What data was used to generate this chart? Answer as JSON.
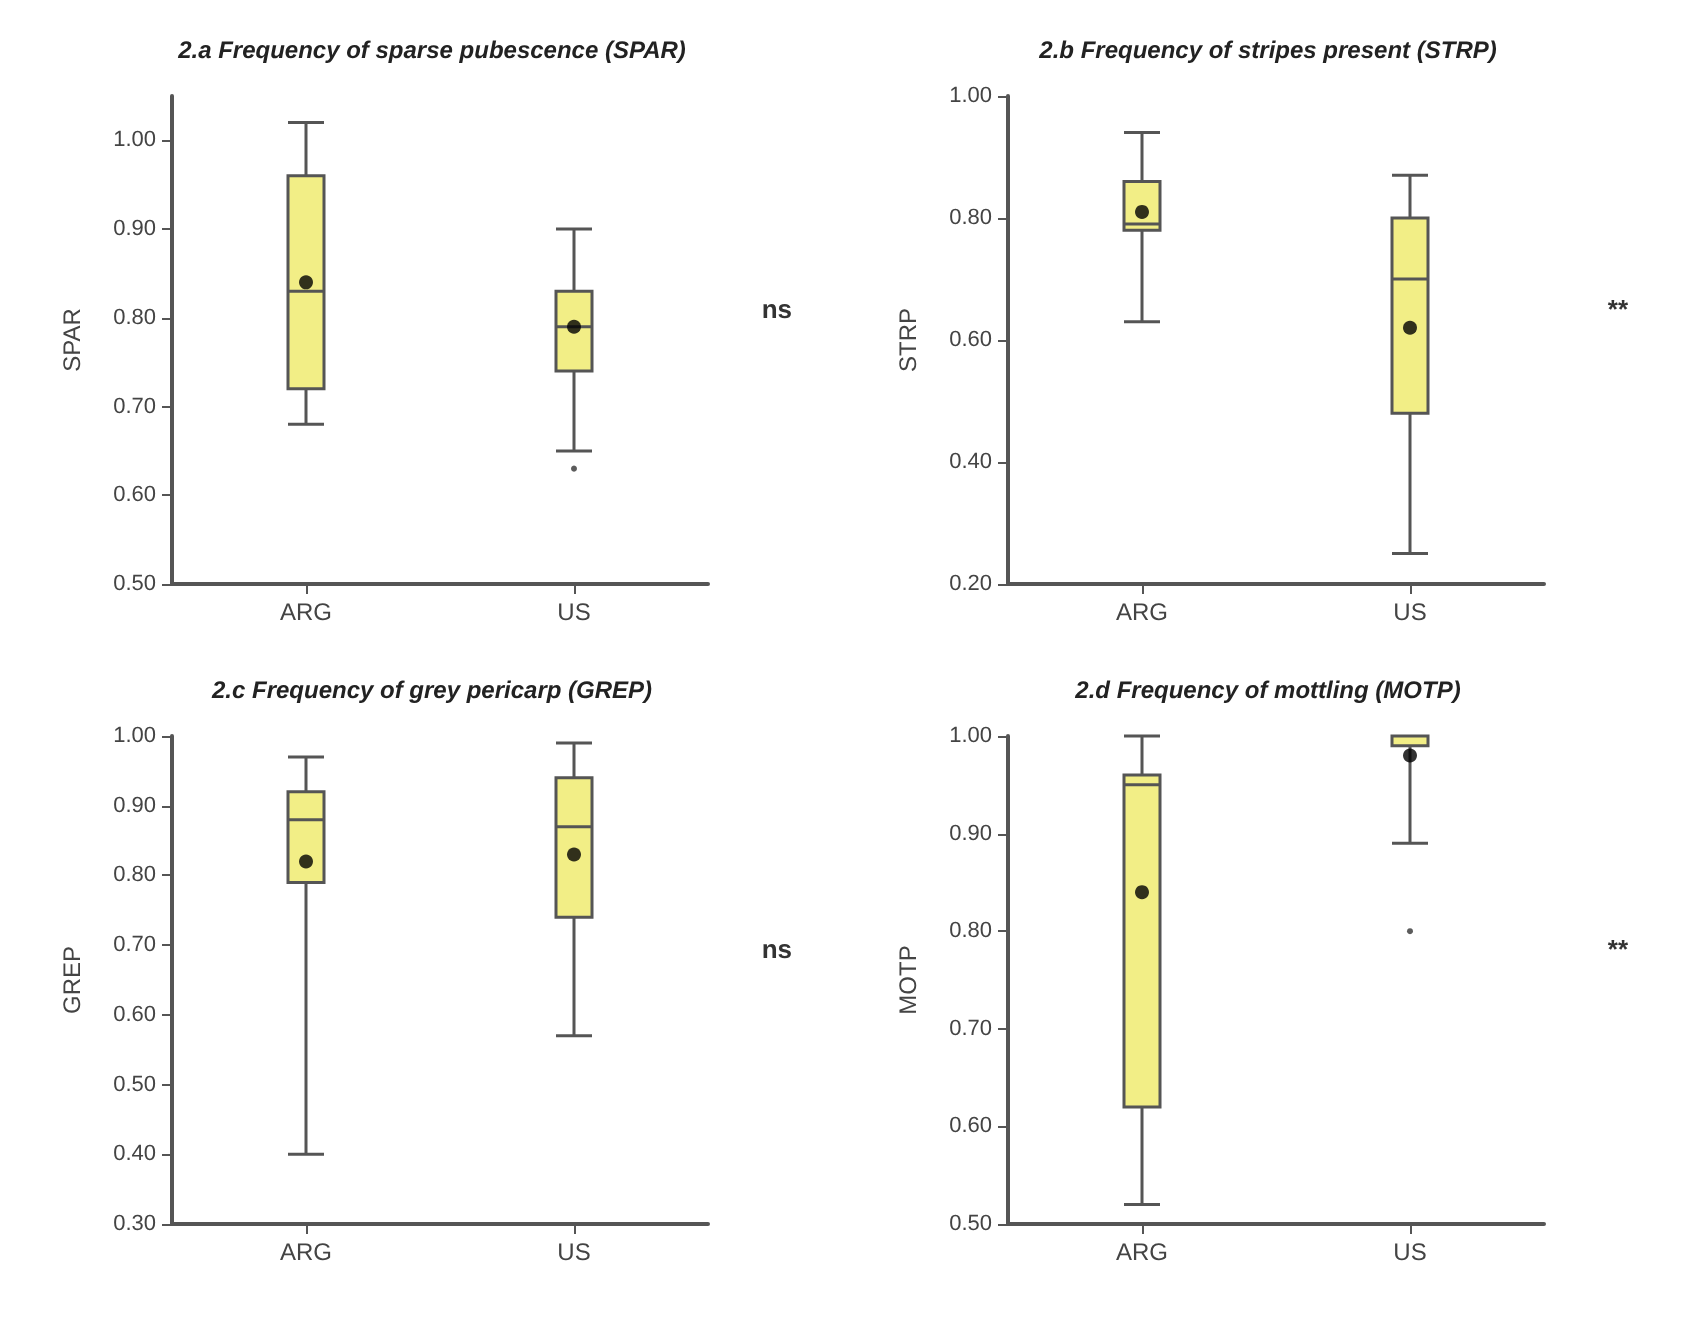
{
  "chart_data": [
    {
      "type": "box",
      "title": "2.a Frequency of sparse pubescence (SPAR)",
      "ylabel": "SPAR",
      "categories": [
        "ARG",
        "US"
      ],
      "color": "#f2ee86",
      "boxes": [
        {
          "low": 0.68,
          "q1": 0.72,
          "median": 0.83,
          "q3": 0.96,
          "high": 1.02,
          "mean": 0.84
        },
        {
          "low": 0.65,
          "q1": 0.74,
          "median": 0.79,
          "q3": 0.83,
          "high": 0.9,
          "mean": 0.79,
          "outliers": [
            0.63
          ]
        }
      ],
      "ylim": [
        0.5,
        1.05
      ],
      "yticks": [
        {
          "value": 0.5,
          "label": "0.50"
        },
        {
          "value": 0.6,
          "label": "0.60"
        },
        {
          "value": 0.7,
          "label": "0.70"
        },
        {
          "value": 0.8,
          "label": "0.80"
        },
        {
          "value": 0.9,
          "label": "0.90"
        },
        {
          "value": 1.0,
          "label": "1.00"
        }
      ],
      "annotations": [
        "ns"
      ]
    },
    {
      "type": "box",
      "title": "2.b Frequency of stripes present (STRP)",
      "ylabel": "STRP",
      "categories": [
        "ARG",
        "US"
      ],
      "color": "#f2ee86",
      "boxes": [
        {
          "low": 0.63,
          "q1": 0.78,
          "median": 0.79,
          "q3": 0.86,
          "high": 0.94,
          "mean": 0.81
        },
        {
          "low": 0.25,
          "q1": 0.48,
          "median": 0.7,
          "q3": 0.8,
          "high": 0.87,
          "mean": 0.62
        }
      ],
      "ylim": [
        0.2,
        1.0
      ],
      "yticks": [
        {
          "value": 0.2,
          "label": "0.20"
        },
        {
          "value": 0.4,
          "label": "0.40"
        },
        {
          "value": 0.6,
          "label": "0.60"
        },
        {
          "value": 0.8,
          "label": "0.80"
        },
        {
          "value": 1.0,
          "label": "1.00"
        }
      ],
      "annotations": [
        "**"
      ]
    },
    {
      "type": "box",
      "title": "2.c Frequency of grey pericarp (GREP)",
      "ylabel": "GREP",
      "categories": [
        "ARG",
        "US"
      ],
      "color": "#f2ee86",
      "boxes": [
        {
          "low": 0.4,
          "q1": 0.79,
          "median": 0.88,
          "q3": 0.92,
          "high": 0.97,
          "mean": 0.82
        },
        {
          "low": 0.57,
          "q1": 0.74,
          "median": 0.87,
          "q3": 0.94,
          "high": 0.99,
          "mean": 0.83
        }
      ],
      "ylim": [
        0.3,
        1.0
      ],
      "yticks": [
        {
          "value": 0.3,
          "label": "0.30"
        },
        {
          "value": 0.4,
          "label": "0.40"
        },
        {
          "value": 0.5,
          "label": "0.50"
        },
        {
          "value": 0.6,
          "label": "0.60"
        },
        {
          "value": 0.7,
          "label": "0.70"
        },
        {
          "value": 0.8,
          "label": "0.80"
        },
        {
          "value": 0.9,
          "label": "0.90"
        },
        {
          "value": 1.0,
          "label": "1.00"
        }
      ],
      "annotations": [
        "ns"
      ]
    },
    {
      "type": "box",
      "title": "2.d Frequency of mottling (MOTP)",
      "ylabel": "MOTP",
      "categories": [
        "ARG",
        "US"
      ],
      "color": "#f2ee86",
      "boxes": [
        {
          "low": 0.52,
          "q1": 0.62,
          "median": 0.95,
          "q3": 0.96,
          "high": 1.0,
          "mean": 0.84
        },
        {
          "low": 0.89,
          "q1": 0.99,
          "median": 0.99,
          "q3": 1.0,
          "high": 1.0,
          "mean": 0.98,
          "outliers": [
            0.8
          ]
        }
      ],
      "ylim": [
        0.5,
        1.0
      ],
      "yticks": [
        {
          "value": 0.5,
          "label": "0.50"
        },
        {
          "value": 0.6,
          "label": "0.60"
        },
        {
          "value": 0.7,
          "label": "0.70"
        },
        {
          "value": 0.8,
          "label": "0.80"
        },
        {
          "value": 0.9,
          "label": "0.90"
        },
        {
          "value": 1.0,
          "label": "1.00"
        }
      ],
      "annotations": [
        "**"
      ]
    }
  ]
}
